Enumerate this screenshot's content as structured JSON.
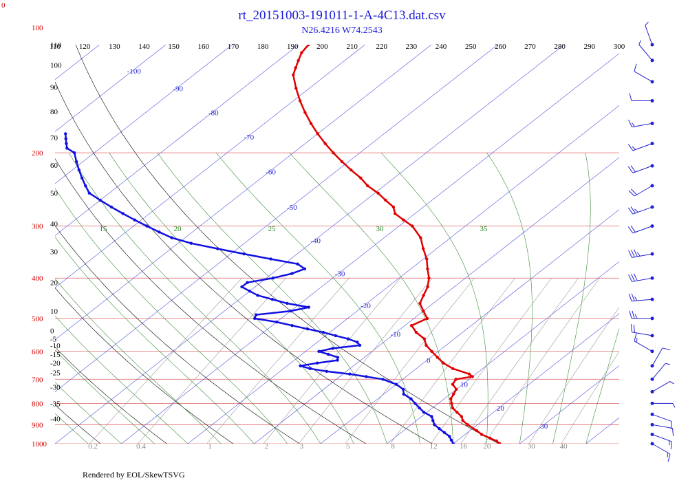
{
  "corner_label": "0",
  "footer": "Rendered by EOL/SkewTSVG",
  "colors": {
    "temperature": "#e00000",
    "dewpoint": "#1010e0",
    "isobar": "#e06060",
    "isotherm": "#5050e0",
    "dry_adiabat": "#000000",
    "moist_adiabat": "#3a8a3a",
    "mixing_ratio": "#9a9a9a",
    "wind": "#2020d0"
  },
  "chart_data": {
    "type": "skew-t",
    "title": "rt_20151003-191011-1-A-4C13.dat.csv",
    "subtitle": "N26.4216 W74.2543",
    "pressure_range_hPa": [
      1000,
      110
    ],
    "pressure_scale": "log",
    "temperature_range_C_at_bottom": [
      -40,
      45
    ],
    "skew_per_decade_C": 80,
    "pressure_ticks": [
      100,
      200,
      300,
      400,
      500,
      600,
      700,
      800,
      900,
      1000
    ],
    "theta_ticks": [
      110,
      120,
      130,
      140,
      150,
      160,
      170,
      180,
      190,
      200,
      210,
      220,
      230,
      240,
      250,
      260,
      270,
      280,
      290,
      300
    ],
    "temperature_ticks": [
      -100,
      -90,
      -80,
      -70,
      -60,
      -50,
      -40,
      -30,
      -20,
      -10,
      0,
      10,
      20,
      30
    ],
    "moist_adiabat_ticks": [
      15,
      20,
      25,
      30,
      35
    ],
    "mixing_ratio_ticks": [
      "0.2",
      "0.4",
      "1",
      "2",
      "3",
      "5",
      "8",
      "12",
      "16",
      "20",
      "30",
      "40"
    ],
    "altitude_ticks_km": [
      {
        "label": "110",
        "p": 110
      },
      {
        "label": "100",
        "p": 123
      },
      {
        "label": "90",
        "p": 139
      },
      {
        "label": "80",
        "p": 159
      },
      {
        "label": "70",
        "p": 184
      },
      {
        "label": "60",
        "p": 214
      },
      {
        "label": "50",
        "p": 250
      },
      {
        "label": "40",
        "p": 296
      },
      {
        "label": "30",
        "p": 345
      },
      {
        "label": "20",
        "p": 410
      },
      {
        "label": "10",
        "p": 480
      },
      {
        "label": "0",
        "p": 535
      },
      {
        "label": "-5",
        "p": 560
      },
      {
        "label": "-10",
        "p": 580
      },
      {
        "label": "-15",
        "p": 610
      },
      {
        "label": "-20",
        "p": 640
      },
      {
        "label": "-25",
        "p": 675
      },
      {
        "label": "-30",
        "p": 730
      },
      {
        "label": "-35",
        "p": 800
      },
      {
        "label": "-40",
        "p": 870
      }
    ],
    "series": [
      {
        "name": "temperature",
        "p": [
          1000,
          985,
          970,
          950,
          930,
          900,
          880,
          860,
          840,
          820,
          800,
          780,
          760,
          740,
          720,
          700,
          690,
          680,
          660,
          640,
          620,
          600,
          580,
          560,
          540,
          520,
          500,
          480,
          460,
          440,
          420,
          400,
          380,
          360,
          340,
          320,
          300,
          290,
          280,
          270,
          260,
          250,
          240,
          230,
          220,
          210,
          200,
          190,
          180,
          170,
          160,
          150,
          140,
          130,
          125,
          120,
          115,
          110,
          105,
          100,
          98,
          96,
          94,
          92,
          90,
          88,
          85,
          82,
          80,
          78,
          75,
          72,
          70
        ],
        "t": [
          27,
          26,
          24.5,
          22.5,
          21,
          18.5,
          17,
          16,
          14.5,
          13,
          12,
          11,
          10.5,
          10,
          8.5,
          8,
          10,
          9,
          5.5,
          3,
          1,
          -1,
          -3,
          -4.5,
          -7,
          -9,
          -8,
          -10,
          -12,
          -13,
          -14,
          -15.5,
          -17.5,
          -19.5,
          -22,
          -24.5,
          -28,
          -30.5,
          -33,
          -34.5,
          -37,
          -39.5,
          -42.5,
          -45,
          -48,
          -51,
          -54,
          -57,
          -60,
          -63,
          -66,
          -69,
          -72,
          -75,
          -76,
          -77,
          -78,
          -78.5,
          -78.5,
          -79,
          -79,
          -78,
          -77,
          -76,
          -75,
          -73.5,
          -71.5,
          -69.5,
          -68,
          -67,
          -65.5,
          -64,
          -63
        ]
      },
      {
        "name": "dewpoint",
        "p": [
          1000,
          980,
          960,
          940,
          920,
          900,
          880,
          860,
          840,
          820,
          800,
          780,
          760,
          740,
          720,
          700,
          690,
          680,
          670,
          660,
          650,
          640,
          630,
          620,
          610,
          600,
          590,
          580,
          570,
          560,
          550,
          540,
          530,
          520,
          510,
          500,
          490,
          480,
          470,
          460,
          450,
          440,
          430,
          420,
          410,
          400,
          390,
          380,
          370,
          360,
          350,
          340,
          330,
          320,
          310,
          300,
          290,
          280,
          270,
          260,
          250,
          240,
          230,
          220,
          210,
          200,
          195,
          190,
          185,
          180
        ],
        "t": [
          20,
          19,
          18,
          16.5,
          15,
          13.5,
          12.5,
          11.5,
          9.5,
          8,
          6.5,
          5,
          3,
          2,
          0,
          -3,
          -6,
          -9,
          -13,
          -16,
          -18,
          -16,
          -13.5,
          -14,
          -16,
          -18,
          -16.5,
          -13,
          -14,
          -16,
          -18.5,
          -21,
          -24,
          -27,
          -30,
          -34,
          -34.5,
          -30,
          -28,
          -32,
          -35,
          -38,
          -40,
          -42,
          -42,
          -39,
          -37,
          -36,
          -38,
          -43,
          -48,
          -53,
          -58,
          -62,
          -65,
          -68,
          -71,
          -74,
          -77,
          -80,
          -83,
          -85,
          -87,
          -89,
          -91,
          -93,
          -95,
          -96,
          -97,
          -98
        ]
      }
    ],
    "wind_barbs": [
      {
        "p": 1000,
        "speed_kt": 15,
        "dir_deg": 120
      },
      {
        "p": 950,
        "speed_kt": 15,
        "dir_deg": 110
      },
      {
        "p": 900,
        "speed_kt": 10,
        "dir_deg": 100
      },
      {
        "p": 850,
        "speed_kt": 10,
        "dir_deg": 110
      },
      {
        "p": 800,
        "speed_kt": 5,
        "dir_deg": 90
      },
      {
        "p": 750,
        "speed_kt": 5,
        "dir_deg": 60
      },
      {
        "p": 700,
        "speed_kt": 5,
        "dir_deg": 40
      },
      {
        "p": 650,
        "speed_kt": 10,
        "dir_deg": 30
      },
      {
        "p": 600,
        "speed_kt": 15,
        "dir_deg": 300
      },
      {
        "p": 550,
        "speed_kt": 20,
        "dir_deg": 280
      },
      {
        "p": 500,
        "speed_kt": 25,
        "dir_deg": 270
      },
      {
        "p": 450,
        "speed_kt": 25,
        "dir_deg": 265
      },
      {
        "p": 400,
        "speed_kt": 30,
        "dir_deg": 260
      },
      {
        "p": 350,
        "speed_kt": 35,
        "dir_deg": 260
      },
      {
        "p": 300,
        "speed_kt": 20,
        "dir_deg": 250
      },
      {
        "p": 270,
        "speed_kt": 25,
        "dir_deg": 250
      },
      {
        "p": 240,
        "speed_kt": 20,
        "dir_deg": 240
      },
      {
        "p": 215,
        "speed_kt": 20,
        "dir_deg": 250
      },
      {
        "p": 190,
        "speed_kt": 15,
        "dir_deg": 250
      },
      {
        "p": 170,
        "speed_kt": 15,
        "dir_deg": 260
      },
      {
        "p": 150,
        "speed_kt": 10,
        "dir_deg": 270
      },
      {
        "p": 135,
        "speed_kt": 10,
        "dir_deg": 300
      },
      {
        "p": 120,
        "speed_kt": 5,
        "dir_deg": 320
      },
      {
        "p": 110,
        "speed_kt": 5,
        "dir_deg": 340
      }
    ]
  }
}
